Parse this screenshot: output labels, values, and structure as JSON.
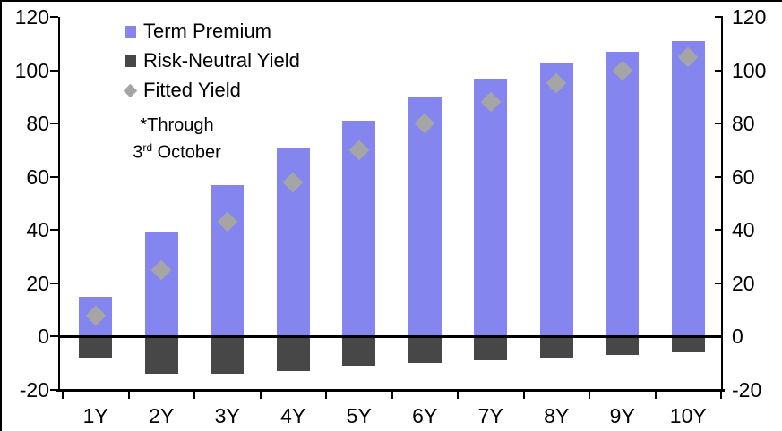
{
  "chart_data": {
    "type": "bar",
    "stacked": true,
    "title": "",
    "xlabel": "",
    "ylabel": "",
    "categories": [
      "1Y",
      "2Y",
      "3Y",
      "4Y",
      "5Y",
      "6Y",
      "7Y",
      "8Y",
      "9Y",
      "10Y"
    ],
    "series": [
      {
        "name": "Term Premium",
        "kind": "bar",
        "color": "#8585F0",
        "values": [
          15,
          39,
          57,
          71,
          81,
          90,
          97,
          103,
          107,
          111
        ]
      },
      {
        "name": "Risk-Neutral Yield",
        "kind": "bar",
        "color": "#474747",
        "values": [
          -8,
          -14,
          -14,
          -13,
          -11,
          -10,
          -9,
          -8,
          -7,
          -6
        ]
      },
      {
        "name": "Fitted Yield",
        "kind": "scatter",
        "marker": "diamond",
        "color": "#A5A5A5",
        "values": [
          8,
          25,
          43,
          58,
          70,
          80,
          88,
          95,
          100,
          105
        ]
      }
    ],
    "ylim": [
      -20,
      120
    ],
    "yticks": [
      120,
      100,
      80,
      60,
      40,
      20,
      0,
      -20
    ],
    "dual_axis": true,
    "grid": false,
    "legend_position": "top-left-inside",
    "axis_color": "#000000",
    "annotation": {
      "line1": "*Through",
      "day": "3",
      "ordinal": "rd",
      "rest": " October"
    }
  }
}
